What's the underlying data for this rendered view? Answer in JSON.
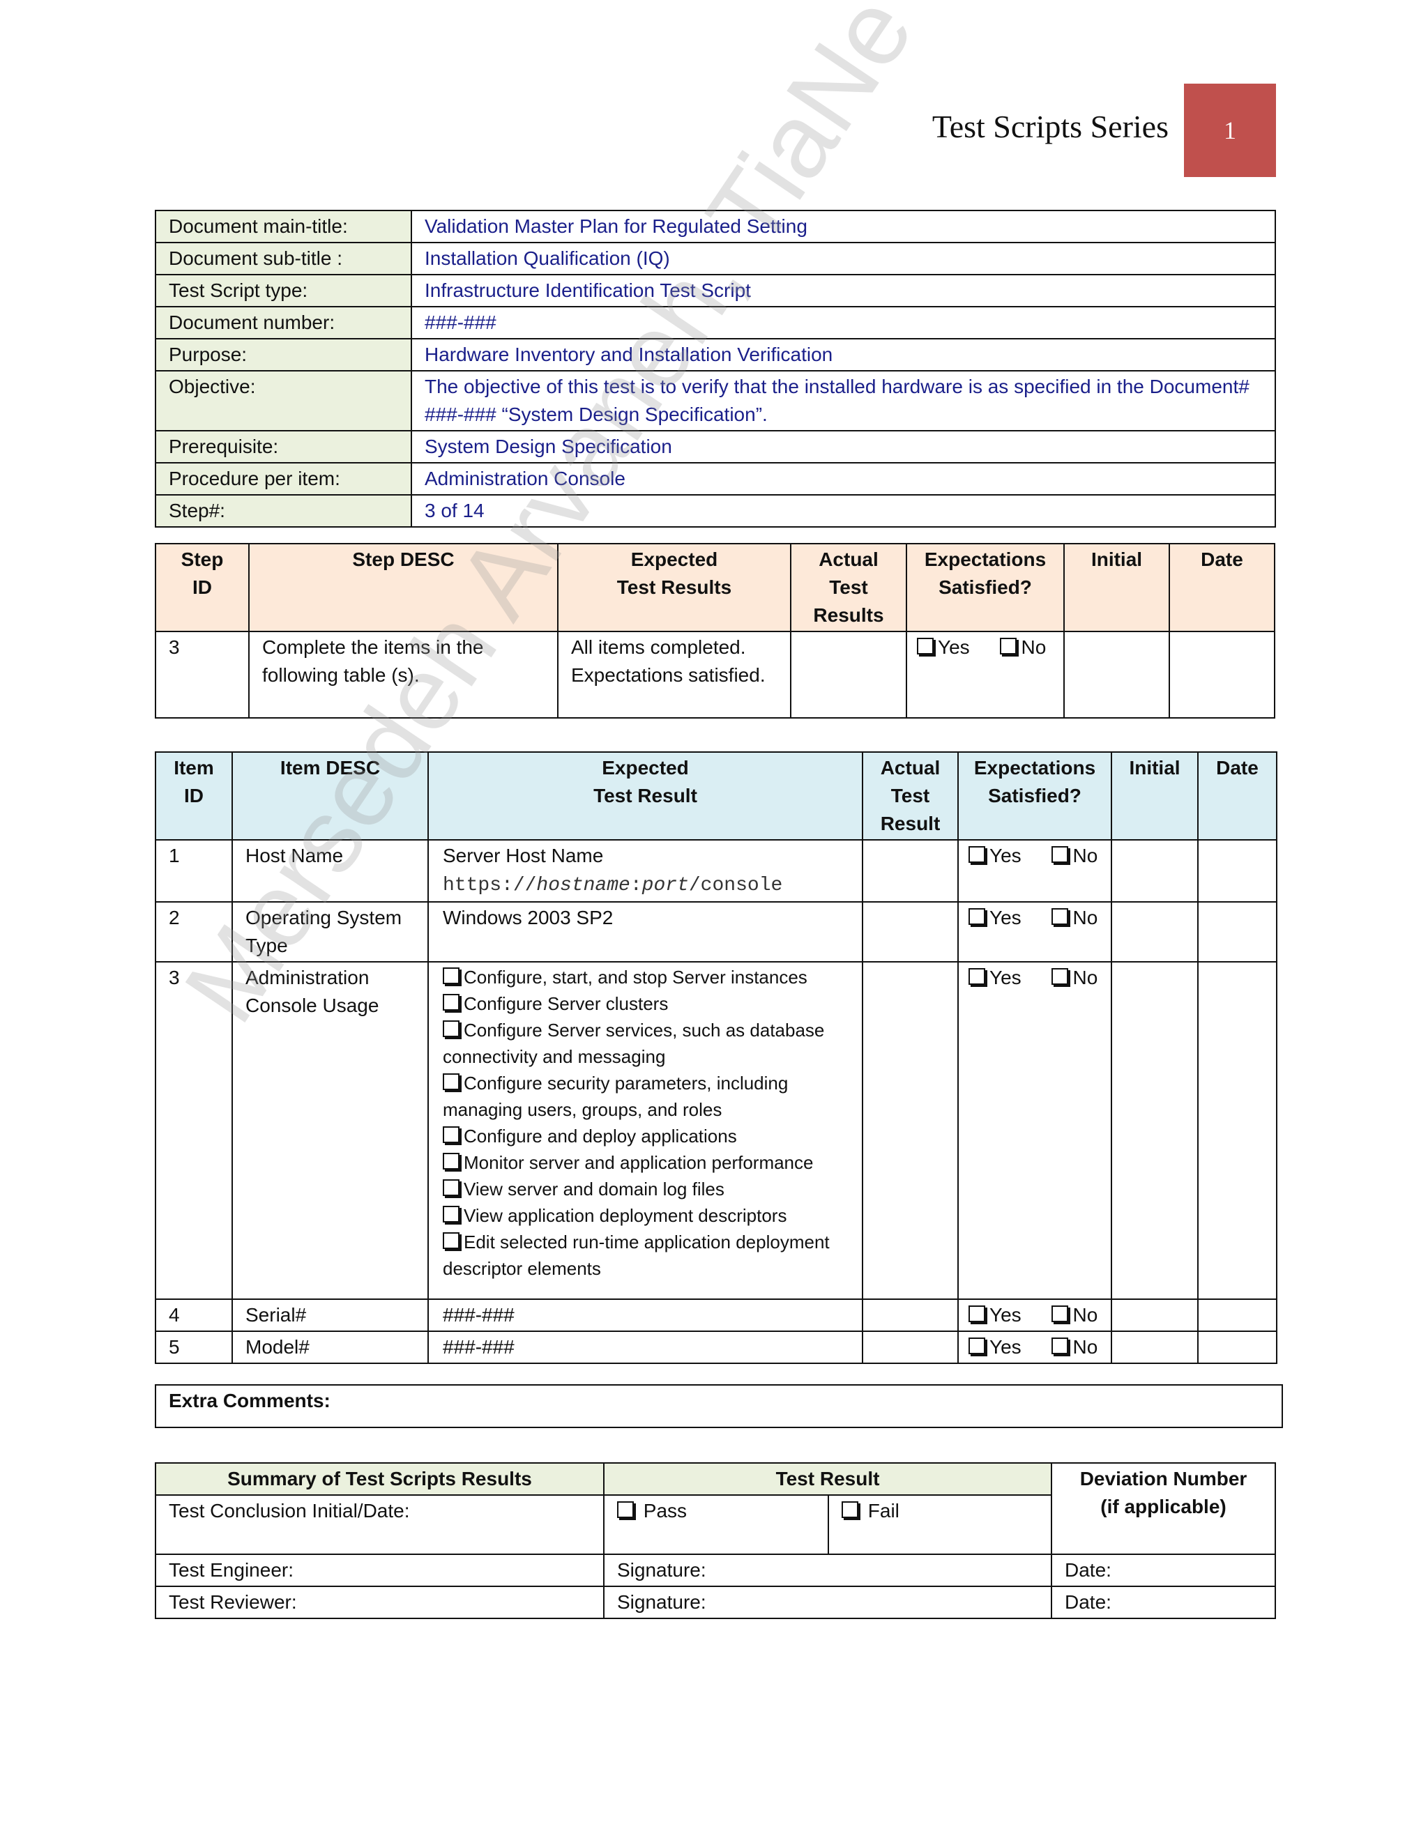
{
  "header": {
    "series_title": "Test Scripts Series",
    "page_number": "1"
  },
  "info_table": [
    {
      "label": "Document main-title:",
      "value": "Validation Master Plan for Regulated Setting"
    },
    {
      "label": "Document sub-title :",
      "value": "Installation Qualification (IQ)"
    },
    {
      "label": "Test Script type:",
      "value": "Infrastructure Identification Test Script"
    },
    {
      "label": "Document number:",
      "value": "###-###"
    },
    {
      "label": "Purpose:",
      "value": "Hardware Inventory and Installation Verification"
    },
    {
      "label": "Objective:",
      "value": "The objective of this test is to verify that the installed hardware is as specified in the Document# ###-### “System Design Specification”."
    },
    {
      "label": "Prerequisite:",
      "value": "System Design Specification"
    },
    {
      "label": "Procedure per item:",
      "value": "Administration Console"
    },
    {
      "label": "Step#:",
      "value": "3 of 14"
    }
  ],
  "step_table": {
    "headers": [
      "Step ID",
      "Step DESC",
      "Expected Test Results",
      "Actual Test Results",
      "Expectations Satisfied?",
      "Initial",
      "Date"
    ],
    "row": {
      "id": "3",
      "desc": "Complete the items in the following table (s).",
      "expected": "All items completed. Expectations satisfied.",
      "actual": "",
      "yes": "Yes",
      "no": "No"
    }
  },
  "item_table": {
    "headers": [
      "Item ID",
      "Item DESC",
      "Expected Test Result",
      "Actual Test Result",
      "Expectations Satisfied?",
      "Initial",
      "Date"
    ],
    "yes": "Yes",
    "no": "No",
    "rows": [
      {
        "id": "1",
        "desc": "Host Name",
        "expected": "Server Host Name",
        "url_prefix": "https://",
        "url_host": "hostname",
        "url_sep": ":",
        "url_port": "port",
        "url_path": "/console"
      },
      {
        "id": "2",
        "desc": "Operating System Type",
        "expected": "Windows 2003 SP2"
      },
      {
        "id": "3",
        "desc": "Administration Console Usage",
        "checklist": [
          "Configure, start, and stop Server instances",
          "Configure Server clusters",
          "Configure  Server services, such as database connectivity  and messaging",
          "Configure security parameters, including managing users, groups, and roles",
          "Configure and deploy  applications",
          "Monitor server and application performance",
          "View server and domain log files",
          "View application deployment descriptors",
          "Edit selected run-time application deployment descriptor elements"
        ]
      },
      {
        "id": "4",
        "desc": "Serial#",
        "expected": "###-###"
      },
      {
        "id": "5",
        "desc": "Model#",
        "expected": "###-###"
      }
    ]
  },
  "extra_comments": {
    "label": "Extra Comments:"
  },
  "summary": {
    "header_summary": "Summary of Test Scripts Results",
    "header_result": "Test Result",
    "header_deviation": "Deviation Number (if applicable)",
    "conclusion_label": "Test Conclusion Initial/Date:",
    "pass": "Pass",
    "fail": "Fail",
    "engineer": "Test Engineer:",
    "reviewer": "Test Reviewer:",
    "signature": "Signature:",
    "date": "Date:"
  },
  "watermark": "Mersedeh Arvaneh, TiaNe LLC.",
  "colors": {
    "accent_red": "#C0504D",
    "label_green": "#EBF1DE",
    "step_header": "#FDE9D9",
    "item_header": "#DAEEF3",
    "value_blue": "#1a1f8a"
  }
}
